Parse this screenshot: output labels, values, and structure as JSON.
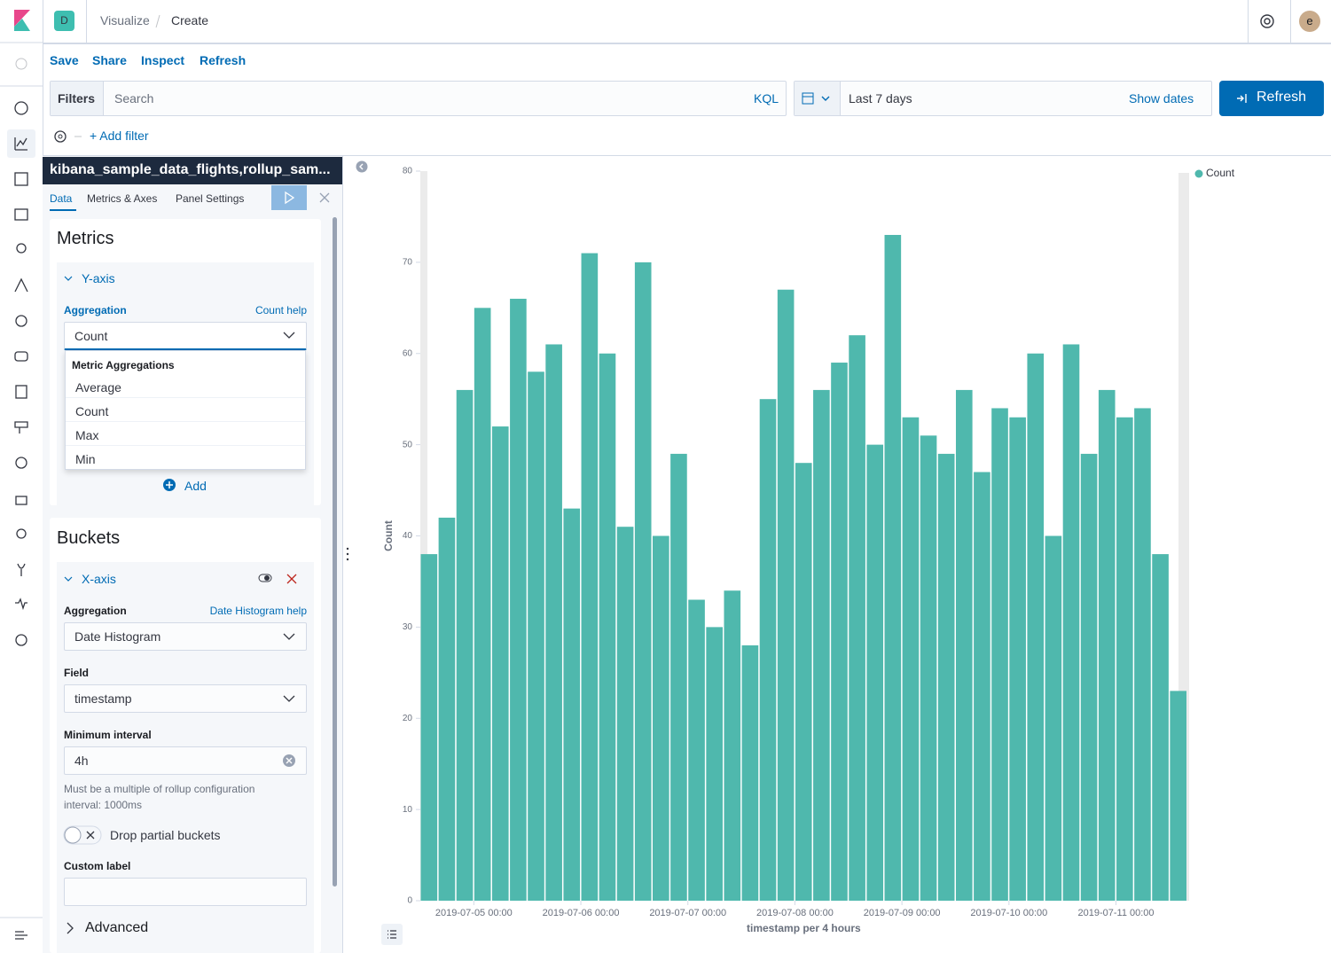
{
  "header": {
    "app_badge": "D",
    "breadcrumbs": [
      "Visualize",
      "Create"
    ],
    "avatar": "e"
  },
  "toolbar": [
    "Save",
    "Share",
    "Inspect",
    "Refresh"
  ],
  "query_bar": {
    "filters_label": "Filters",
    "search_placeholder": "Search",
    "language": "KQL",
    "time_range": "Last 7 days",
    "show_dates": "Show dates",
    "refresh": "Refresh",
    "add_filter": "+ Add filter"
  },
  "editor": {
    "index_pattern": "kibana_sample_data_flights,rollup_sam...",
    "tabs": [
      "Data",
      "Metrics & Axes",
      "Panel Settings"
    ],
    "metrics": {
      "title": "Metrics",
      "y_axis": "Y-axis",
      "aggregation_label": "Aggregation",
      "help_link": "Count help",
      "selected": "Count",
      "group_label": "Metric Aggregations",
      "options": [
        "Average",
        "Count",
        "Max",
        "Min"
      ],
      "add": "Add"
    },
    "buckets": {
      "title": "Buckets",
      "x_axis": "X-axis",
      "aggregation_label": "Aggregation",
      "help_link": "Date Histogram help",
      "aggregation": "Date Histogram",
      "field_label": "Field",
      "field": "timestamp",
      "interval_label": "Minimum interval",
      "interval": "4h",
      "interval_help": "Must be a multiple of rollup configuration interval: 1000ms",
      "drop_partial": "Drop partial buckets",
      "custom_label": "Custom label",
      "advanced": "Advanced"
    }
  },
  "chart_data": {
    "type": "bar",
    "xlabel": "timestamp per 4 hours",
    "ylabel": "Count",
    "legend": "top-right",
    "x": [
      "2019-07-04 12:00",
      "2019-07-04 16:00",
      "2019-07-04 20:00",
      "2019-07-05 00:00",
      "2019-07-05 04:00",
      "2019-07-05 08:00",
      "2019-07-05 12:00",
      "2019-07-05 16:00",
      "2019-07-05 20:00",
      "2019-07-06 00:00",
      "2019-07-06 04:00",
      "2019-07-06 08:00",
      "2019-07-06 12:00",
      "2019-07-06 16:00",
      "2019-07-06 20:00",
      "2019-07-07 00:00",
      "2019-07-07 04:00",
      "2019-07-07 08:00",
      "2019-07-07 12:00",
      "2019-07-07 16:00",
      "2019-07-07 20:00",
      "2019-07-08 00:00",
      "2019-07-08 04:00",
      "2019-07-08 08:00",
      "2019-07-08 12:00",
      "2019-07-08 16:00",
      "2019-07-08 20:00",
      "2019-07-09 00:00",
      "2019-07-09 04:00",
      "2019-07-09 08:00",
      "2019-07-09 12:00",
      "2019-07-09 16:00",
      "2019-07-09 20:00",
      "2019-07-10 00:00",
      "2019-07-10 04:00",
      "2019-07-10 08:00",
      "2019-07-10 12:00",
      "2019-07-10 16:00",
      "2019-07-10 20:00",
      "2019-07-11 00:00",
      "2019-07-11 04:00",
      "2019-07-11 08:00",
      "2019-07-11 12:00"
    ],
    "series": [
      {
        "name": "Count",
        "color": "#4fb8ad",
        "values": [
          38,
          42,
          56,
          65,
          52,
          66,
          58,
          61,
          43,
          71,
          60,
          41,
          70,
          40,
          49,
          33,
          30,
          34,
          28,
          55,
          67,
          48,
          56,
          59,
          62,
          50,
          73,
          53,
          51,
          49,
          56,
          47,
          54,
          53,
          60,
          40,
          61,
          49,
          56,
          53,
          54,
          38,
          23
        ]
      }
    ],
    "xlim": [
      "2019-07-04 12:00",
      "2019-07-11 16:00"
    ],
    "xticks": [
      "2019-07-05 00:00",
      "2019-07-06 00:00",
      "2019-07-07 00:00",
      "2019-07-08 00:00",
      "2019-07-09 00:00",
      "2019-07-10 00:00",
      "2019-07-11 00:00"
    ],
    "ylim": [
      0,
      80
    ],
    "yticks": [
      0,
      10,
      20,
      30,
      40,
      50,
      60,
      70,
      80
    ]
  }
}
